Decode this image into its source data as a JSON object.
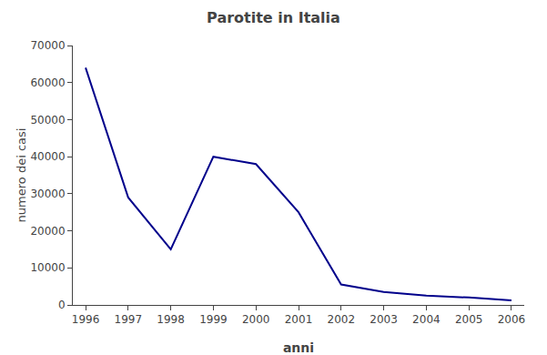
{
  "chart_data": {
    "type": "line",
    "title": "Parotite in Italia",
    "xlabel": "anni",
    "ylabel": "numero dei casi",
    "x": [
      1996,
      1997,
      1998,
      1999,
      2000,
      2001,
      2002,
      2003,
      2004,
      2005,
      2006
    ],
    "values": [
      64000,
      29000,
      15000,
      40000,
      38000,
      25000,
      5500,
      3500,
      2500,
      2000,
      1200
    ],
    "color": "#00008B",
    "xlim": [
      1995.7,
      2006.3
    ],
    "xticks": [
      1996,
      1997,
      1998,
      1999,
      2000,
      2001,
      2002,
      2003,
      2004,
      2005,
      2006
    ],
    "ylim": [
      0,
      70000
    ],
    "yticks": [
      0,
      10000,
      20000,
      30000,
      40000,
      50000,
      60000,
      70000
    ],
    "grid": false
  }
}
